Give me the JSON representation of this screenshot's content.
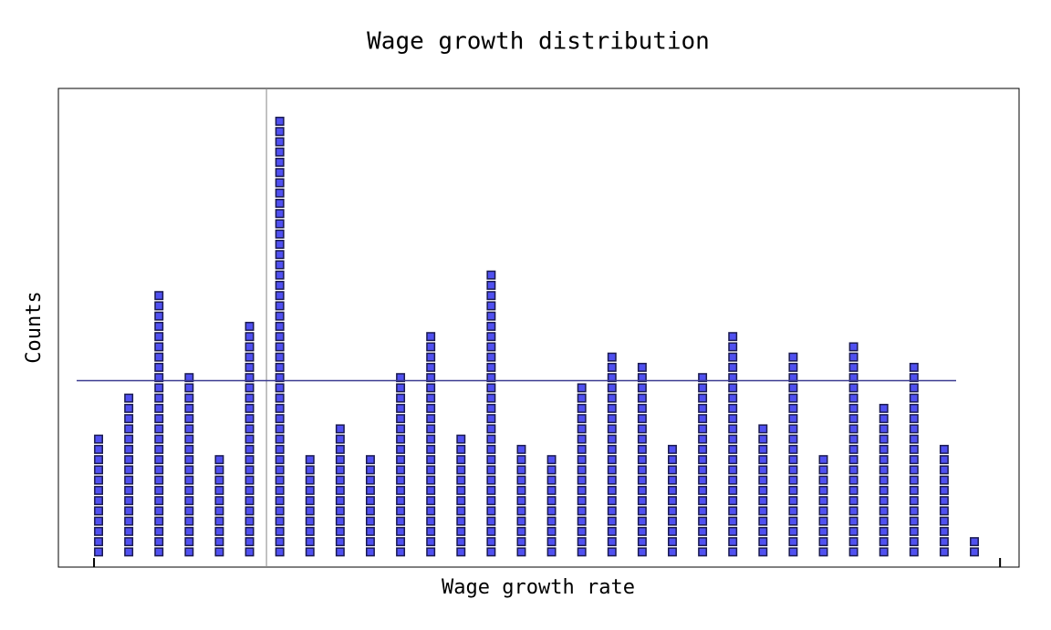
{
  "chart_data": {
    "type": "dotstack",
    "title": "Wage growth distribution",
    "xlabel": "Wage growth rate",
    "ylabel": "Counts",
    "x": [
      1,
      2,
      3,
      4,
      5,
      6,
      7,
      8,
      9,
      10,
      11,
      12,
      13,
      14,
      15,
      16,
      17,
      18,
      19,
      20,
      21,
      22,
      23,
      24,
      25,
      26,
      27,
      28,
      29,
      30
    ],
    "values": [
      12,
      16,
      26,
      18,
      10,
      23,
      43,
      10,
      13,
      10,
      18,
      22,
      12,
      28,
      11,
      10,
      17,
      20,
      19,
      11,
      18,
      22,
      13,
      20,
      10,
      21,
      15,
      19,
      11,
      2
    ],
    "color": "#5050f0",
    "xlim": [
      -0.33,
      31.48
    ],
    "ylim": [
      -0.98,
      45.7
    ],
    "xticks": [
      0.85,
      30.85
    ],
    "hline": 17.2,
    "vline": 6.56
  }
}
